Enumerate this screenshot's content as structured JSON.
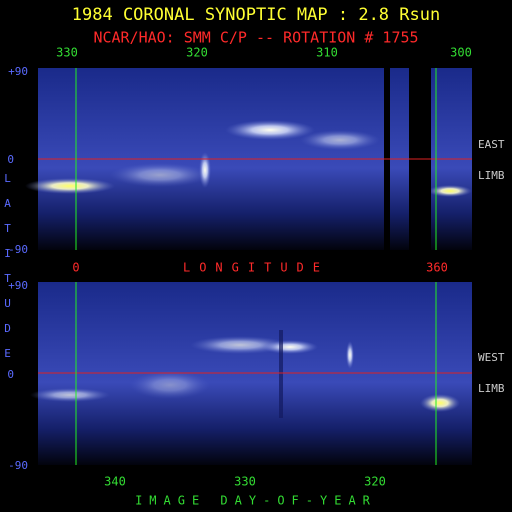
{
  "title": "1984 CORONAL SYNOPTIC MAP : 2.8 Rsun",
  "subtitle": "NCAR/HAO: SMM C/P -- ROTATION # 1755",
  "top_axis": {
    "ticks": [
      "330",
      "320",
      "310",
      "300"
    ]
  },
  "longitude_axis": {
    "start": "0",
    "label": "LONGITUDE",
    "end": "360"
  },
  "bottom_axis": {
    "ticks": [
      "340",
      "330",
      "320"
    ],
    "label": "IMAGE DAY-OF-YEAR"
  },
  "y_title": "LATITUDE",
  "panels": [
    {
      "lat_ticks": [
        "+90",
        "0",
        "-90"
      ],
      "side_label": [
        "EAST",
        "LIMB"
      ]
    },
    {
      "lat_ticks": [
        "+90",
        "0",
        "-90"
      ],
      "side_label": [
        "WEST",
        "LIMB"
      ]
    }
  ]
}
